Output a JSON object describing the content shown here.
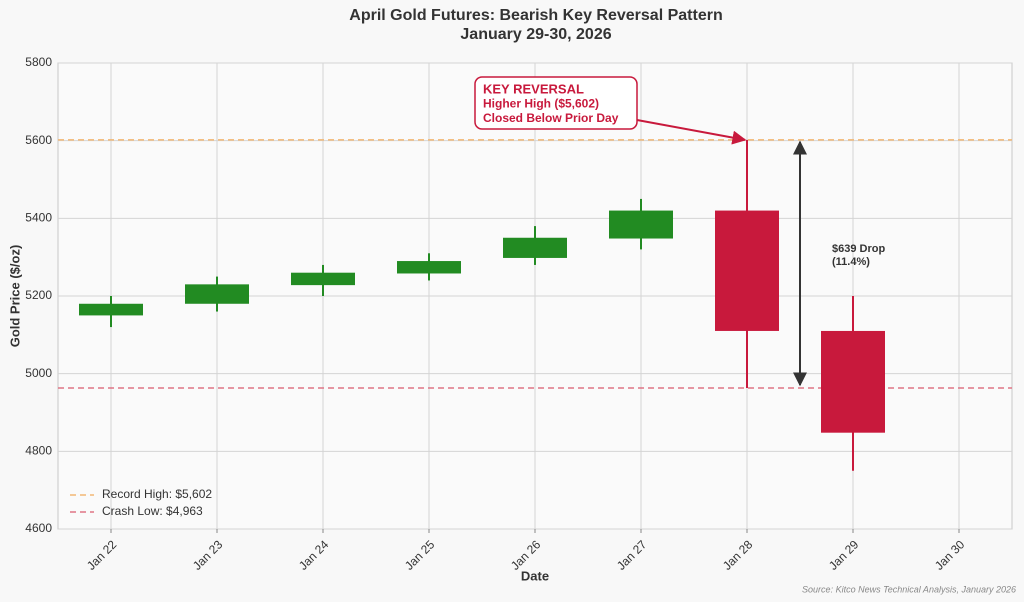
{
  "chart_data": {
    "type": "candlestick",
    "title": "April Gold Futures: Bearish Key Reversal Pattern",
    "subtitle": "January 29-30, 2026",
    "x_label": "Date",
    "y_label": "Gold Price ($/oz)",
    "categories": [
      "Jan 22",
      "Jan 23",
      "Jan 24",
      "Jan 25",
      "Jan 26",
      "Jan 27",
      "Jan 28",
      "Jan 29",
      "Jan 30"
    ],
    "open": [
      5150,
      5180,
      5228,
      5258,
      5298,
      5348,
      5420,
      5110,
      null
    ],
    "high": [
      5200,
      5250,
      5280,
      5310,
      5380,
      5450,
      5602,
      5200,
      null
    ],
    "low": [
      5120,
      5160,
      5200,
      5240,
      5280,
      5320,
      4963,
      4750,
      null
    ],
    "close": [
      5180,
      5230,
      5260,
      5290,
      5350,
      5420,
      5110,
      4848,
      null
    ],
    "up_color": "#228b22",
    "down_color": "#c8193c",
    "ylim": [
      4600,
      5800
    ],
    "yticks": [
      4600,
      4800,
      5000,
      5200,
      5400,
      5600,
      5800
    ],
    "grid": true,
    "hlines": [
      {
        "name": "Record High: $5,602",
        "value": 5602,
        "color": "#f2b774"
      },
      {
        "name": "Crash Low: $4,963",
        "value": 4963,
        "color": "#e07585"
      }
    ],
    "legend": "lower left",
    "annotation": {
      "lines": [
        "KEY REVERSAL",
        "Higher High ($5,602)",
        "Closed Below Prior Day"
      ],
      "color": "#c8193c"
    },
    "drop_annotation": {
      "lines": [
        "$639 Drop",
        "(11.4%)"
      ]
    },
    "source": "Source: Kitco News Technical Analysis, January 2026"
  }
}
